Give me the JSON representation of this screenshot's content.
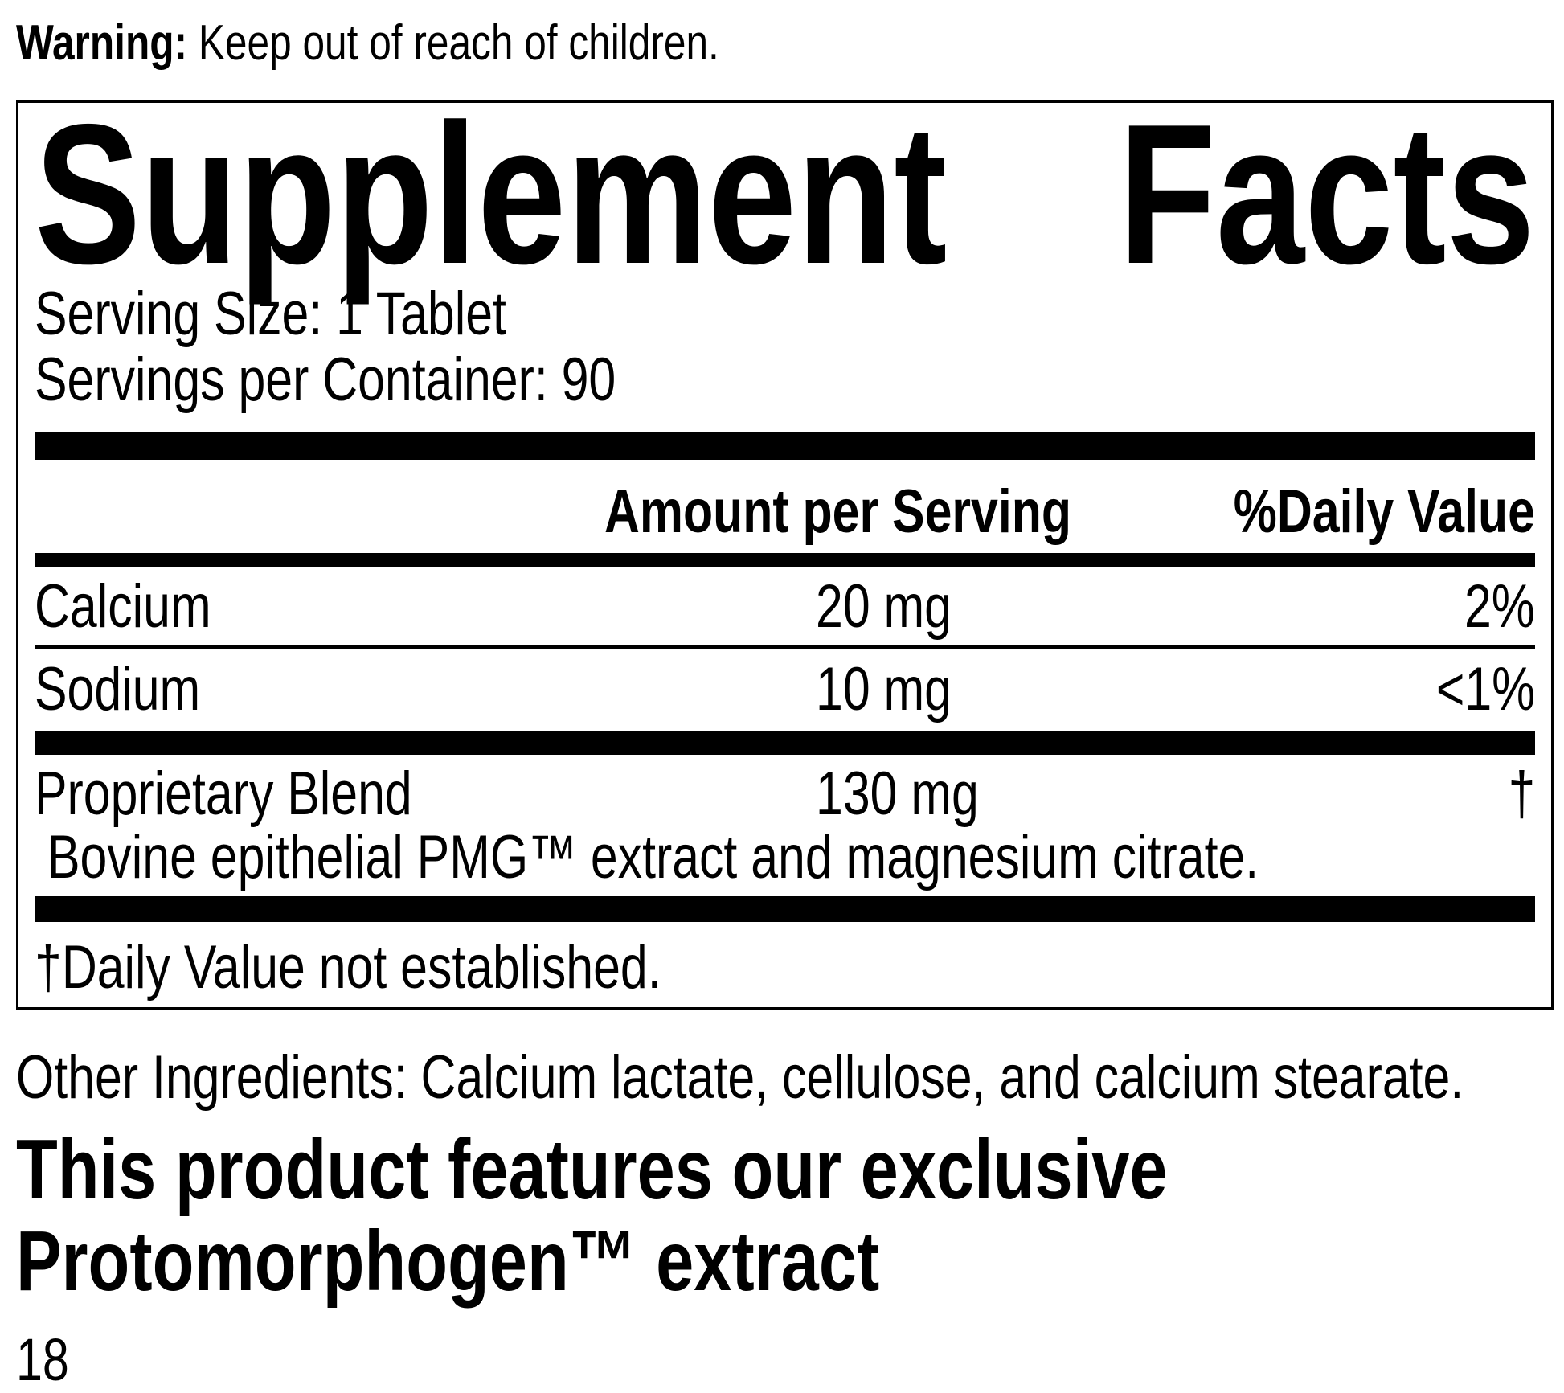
{
  "warning": {
    "label": "Warning:",
    "text": " Keep out of reach of children."
  },
  "panel": {
    "title": {
      "word1": "Supplement",
      "word2": "Facts"
    },
    "serving_size": "Serving Size: 1 Tablet",
    "servings_per_container": "Servings per Container: 90",
    "columns": {
      "amount": "Amount per Serving",
      "daily_value": "%Daily Value"
    },
    "rows": [
      {
        "name": "Calcium",
        "amount": "20 mg",
        "dv": "2%"
      },
      {
        "name": "Sodium",
        "amount": "10 mg",
        "dv": "<1%"
      },
      {
        "name": "Proprietary Blend",
        "amount": "130 mg",
        "dv": "†",
        "description": "Bovine epithelial PMG™ extract and magnesium citrate."
      }
    ],
    "footnote": "†Daily Value not established."
  },
  "other_ingredients": "Other Ingredients: Calcium lactate, cellulose, and calcium stearate.",
  "feature_heading": {
    "line1": "This product features our exclusive",
    "line2": "Protomorphogen™ extract"
  },
  "page_number": "18",
  "colors": {
    "ink": "#000000",
    "paper": "#ffffff"
  }
}
